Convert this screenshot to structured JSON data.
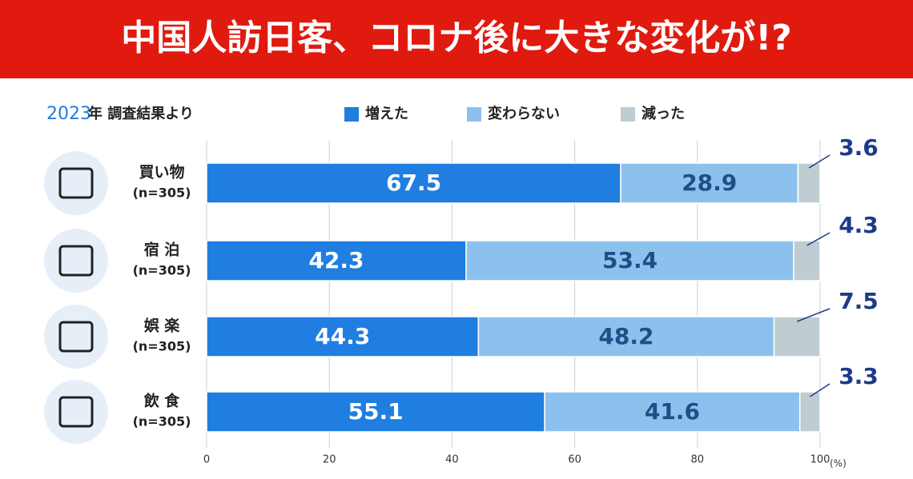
{
  "chart_data": {
    "type": "stacked-barh",
    "title": "中国人訪日客、コロナ後に大きな変化が!?",
    "subtitle": {
      "year": "2023",
      "text": "年 調査結果より"
    },
    "categories": [
      "買い物",
      "宿 泊",
      "娯 楽",
      "飲 食"
    ],
    "sample_sizes": [
      "(n=305)",
      "(n=305)",
      "(n=305)",
      "(n=305)"
    ],
    "series": [
      {
        "name": "増えた",
        "color": "#1f7ee0",
        "values": [
          67.5,
          42.3,
          44.3,
          55.1
        ]
      },
      {
        "name": "変わらない",
        "color": "#8cc1ee",
        "values": [
          28.9,
          53.4,
          48.2,
          41.6
        ]
      },
      {
        "name": "減った",
        "color": "#bfcdd2",
        "values": [
          3.6,
          4.3,
          7.5,
          3.3
        ]
      }
    ],
    "xlim": [
      0,
      100
    ],
    "xticks": [
      0,
      20,
      40,
      60,
      80,
      100
    ],
    "x_unit": "(%)",
    "grid": true
  }
}
